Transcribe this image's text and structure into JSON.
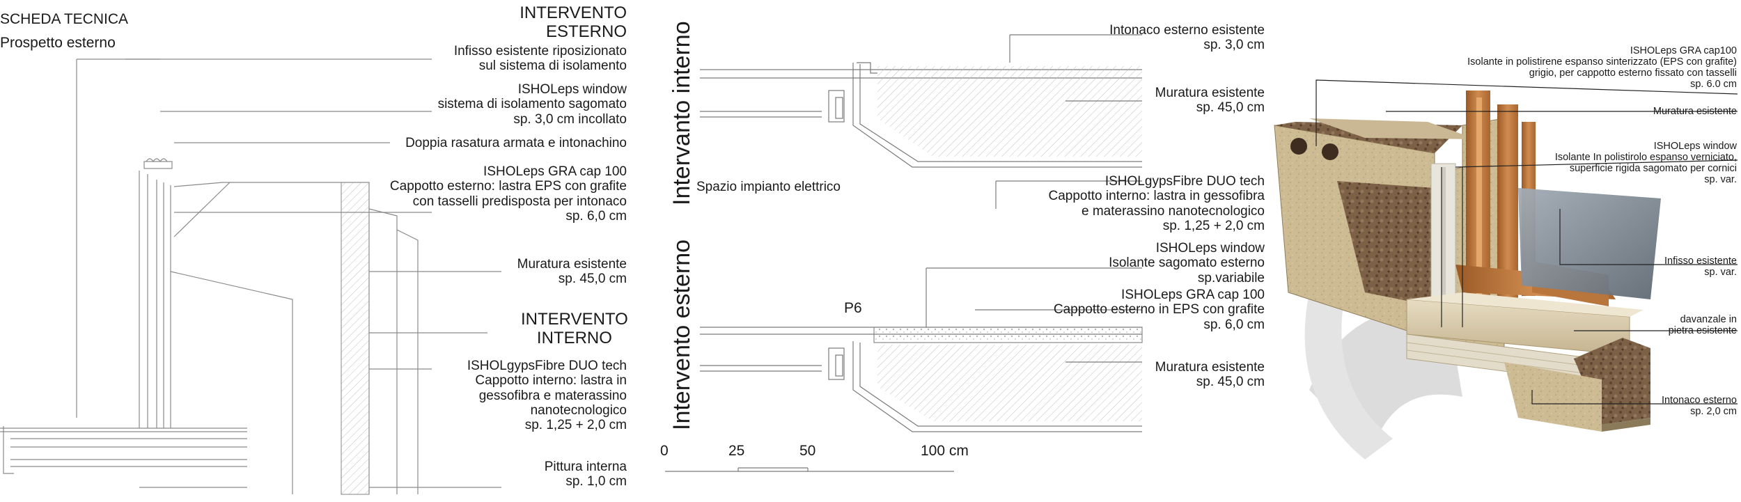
{
  "header": {
    "title": "SCHEDA TECNICA",
    "subtitle": "Prospetto esterno"
  },
  "left_section": {
    "title_esterno": [
      "INTERVENTO",
      "ESTERNO"
    ],
    "title_interno": [
      "INTERVENTO",
      "INTERNO"
    ],
    "labels": [
      [
        "Infisso esistente riposizionato",
        "sul sistema di isolamento"
      ],
      [
        "ISHOLeps window",
        "sistema di isolamento sagomato",
        "sp. 3,0 cm incollato"
      ],
      [
        "Doppia rasatura armata e intonachino"
      ],
      [
        "ISHOLeps GRA cap 100",
        "Cappotto esterno: lastra EPS con grafite",
        "con tasselli predisposta per intonaco",
        "sp. 6,0 cm"
      ],
      [
        "Muratura esistente",
        "sp. 45,0 cm"
      ],
      [
        "ISHOLgypsFibre DUO tech",
        "Cappotto interno: lastra in",
        "gessofibra e materassino",
        "nanotecnologico",
        "sp. 1,25 + 2,0 cm"
      ],
      [
        "Pittura interna",
        "sp. 1,0 cm"
      ]
    ]
  },
  "middle_section": {
    "vertical_interno": "Intervanto interno",
    "vertical_esterno": "Intervento esterno",
    "spazio_label": "Spazio impianto elettrico",
    "p6_label": "P6",
    "upper_labels": [
      [
        "Intonaco esterno esistente",
        "sp. 3,0 cm"
      ],
      [
        "Muratura esistente",
        "sp. 45,0 cm"
      ],
      [
        "ISHOLgypsFibre DUO tech",
        "Cappotto interno: lastra in gessofibra",
        "e materassino nanotecnologico",
        "sp. 1,25 + 2,0 cm"
      ]
    ],
    "lower_labels": [
      [
        "ISHOLeps window",
        "Isolante sagomato esterno",
        "sp.variabile"
      ],
      [
        "ISHOLeps GRA cap 100",
        "Cappotto esterno in EPS con grafite",
        "sp. 6,0 cm"
      ],
      [
        "Muratura esistente",
        "sp. 45,0 cm"
      ]
    ],
    "scale": {
      "ticks": [
        "0",
        "25",
        "50",
        "100 cm"
      ]
    }
  },
  "right_section": {
    "labels": [
      [
        "ISHOLeps GRA cap100",
        "Isolante in polistirene espanso sinterizzato (EPS con grafite)",
        "grigio, per cappotto esterno fissato con tasselli",
        "sp. 6.0 cm"
      ],
      [
        "Muratura esistente"
      ],
      [
        "ISHOLeps window",
        "Isolante In polistirolo espanso verniciato,",
        "superficie rigida sagomato per cornici",
        "sp. var."
      ],
      [
        "Infisso esistente",
        "sp. var."
      ],
      [
        "davanzale in",
        "pietra esistente"
      ],
      [
        "Intonaco esterno",
        "sp. 2,0 cm"
      ]
    ]
  },
  "colors": {
    "line": "#6e6e6e",
    "wood": "#c27a3e",
    "stone": "#d8c9a8",
    "glass": "#7a8590",
    "cork": "#8a6a4c"
  }
}
